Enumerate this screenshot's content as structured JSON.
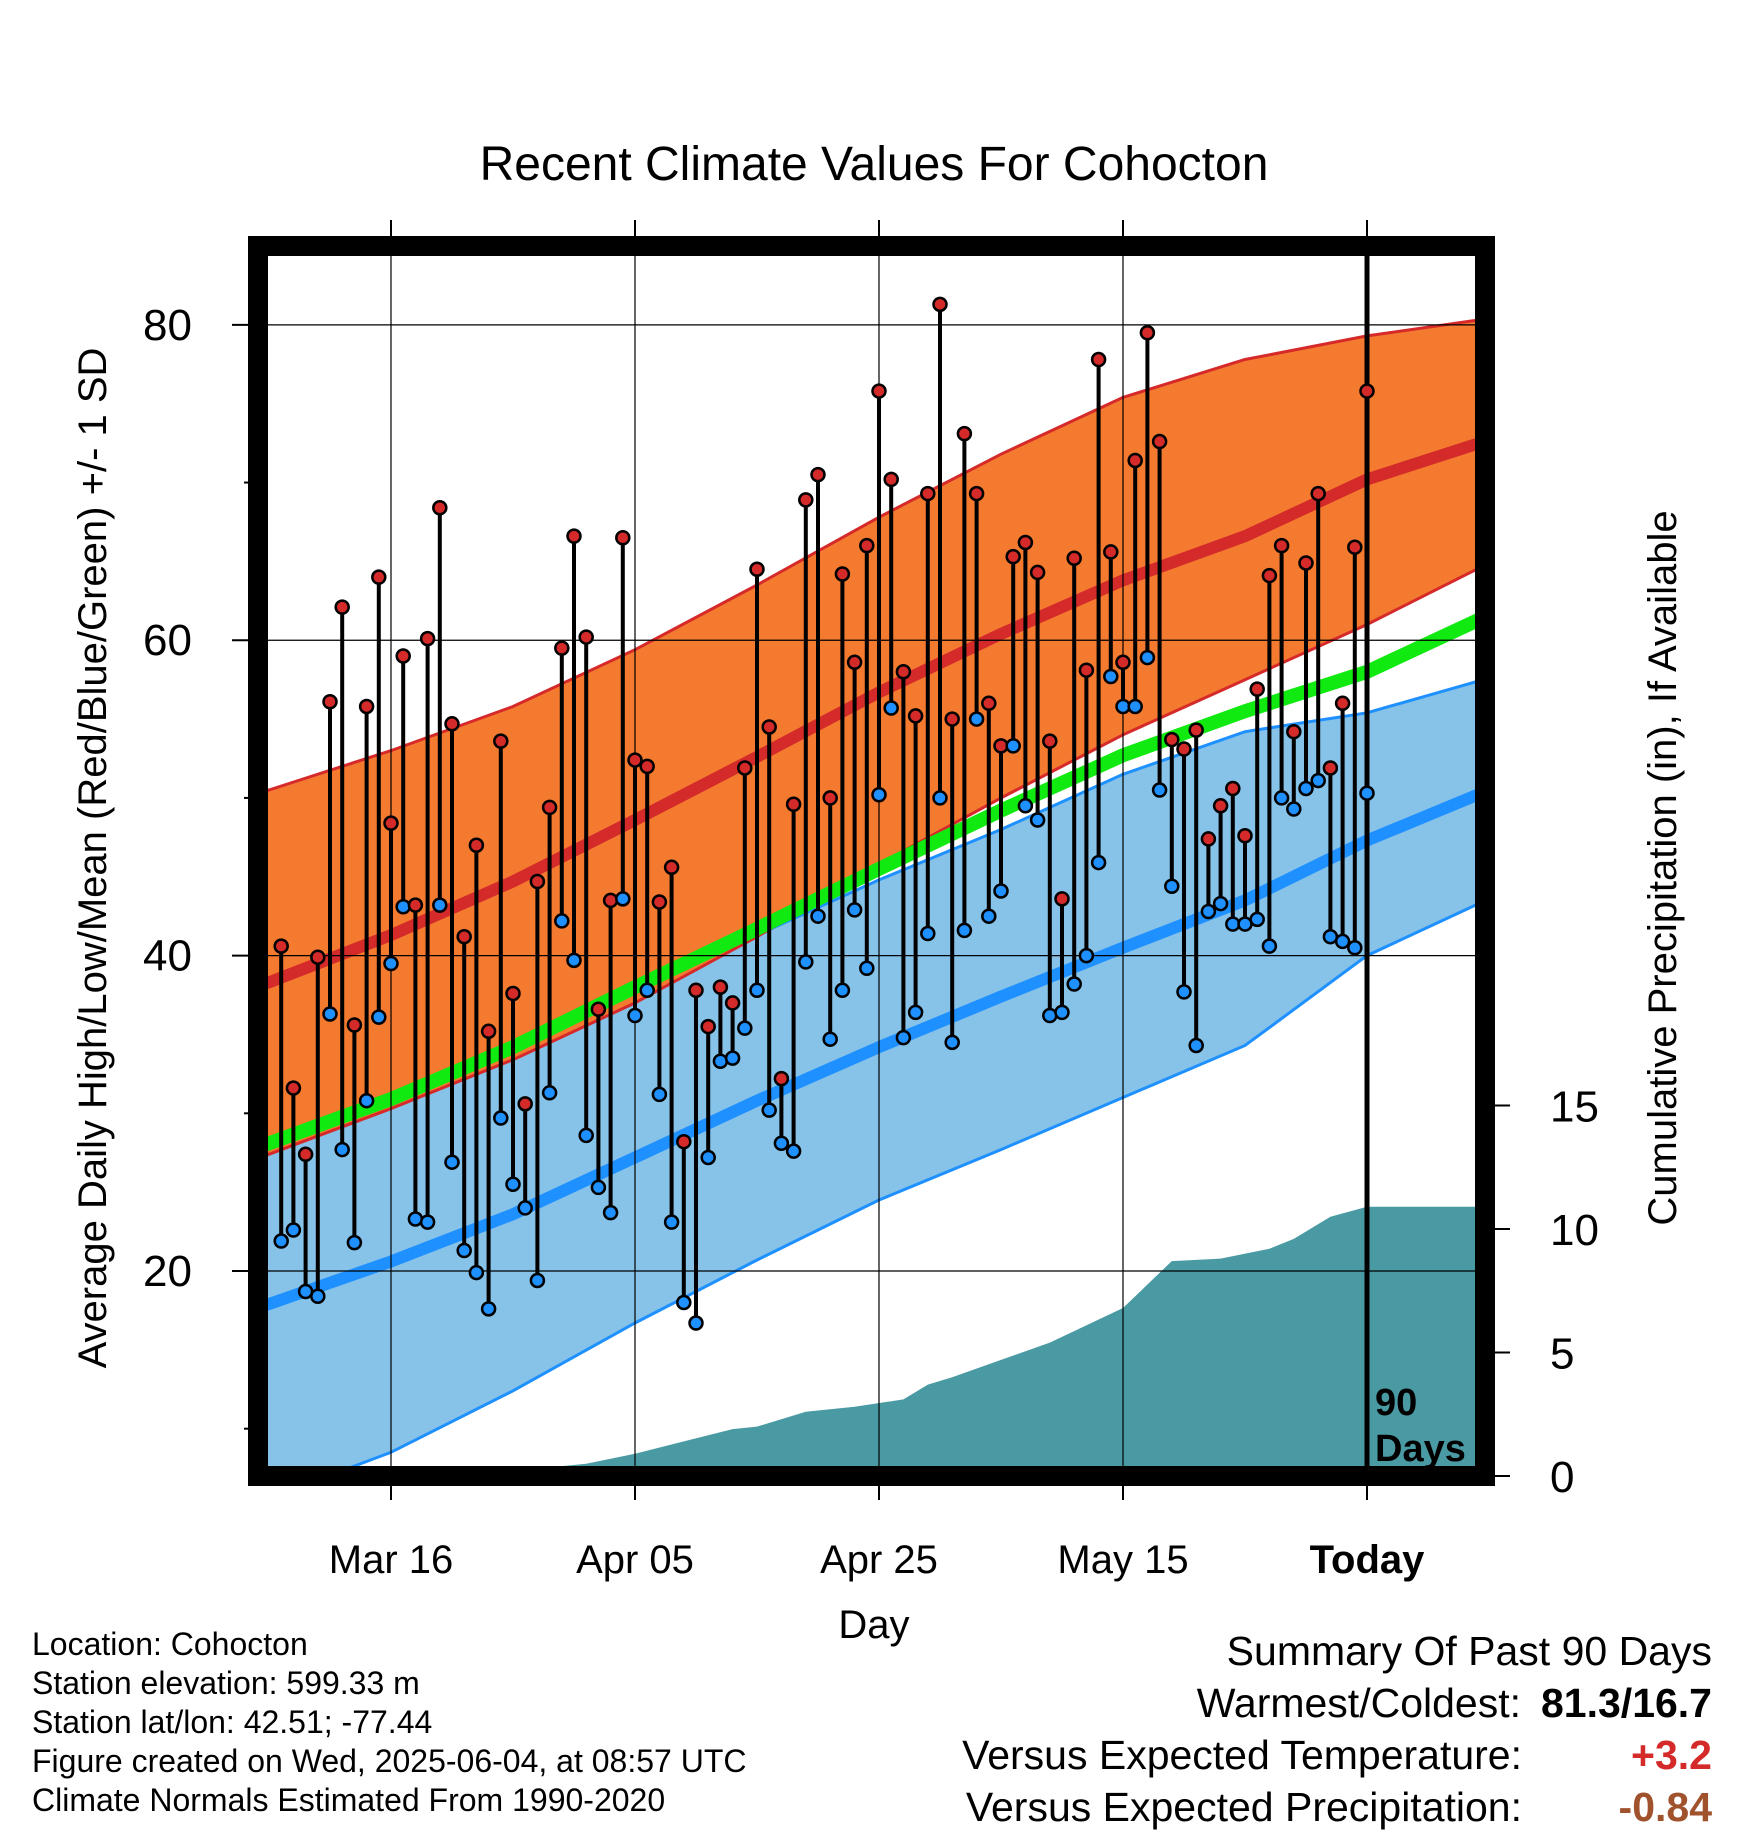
{
  "chart_data": {
    "type": "line",
    "title": "Recent Climate Values For Cohocton",
    "xlabel": "Day",
    "ylabel": "Average Daily High/Low/Mean (Red/Blue/Green) +/- 1 SD",
    "y2label": "Cumulative Precipitation (in), If Available",
    "x_ticks": [
      "Mar 16",
      "Apr 05",
      "Apr 25",
      "May 15",
      "Today"
    ],
    "y_ticks": [
      20,
      40,
      60,
      80
    ],
    "y2_ticks": [
      0,
      5,
      10,
      15
    ],
    "ylim": [
      7,
      85
    ],
    "y2lim": [
      0,
      30
    ],
    "x_range_days": [
      -100,
      0
    ],
    "period_label": "90 Days",
    "grid": true,
    "colors": {
      "high_band": "#f47a30",
      "high_band_edge": "#d62a2a",
      "high_mean": "#d42a2a",
      "low_band": "#87c3e8",
      "low_band_edge": "#1e90ff",
      "low_mean": "#1e90ff",
      "mean_line": "#10ea10",
      "precip": "#4a9aa4",
      "high_dot": "#d42a2a",
      "low_dot": "#1e90ff"
    },
    "normals": {
      "day": [
        -100,
        -90,
        -80,
        -70,
        -60,
        -50,
        -40,
        -30,
        -20,
        -10,
        0,
        10
      ],
      "high_mean": [
        35.7,
        38.3,
        41.3,
        44.7,
        48.6,
        52.6,
        56.7,
        60.4,
        63.8,
        66.6,
        70.2,
        72.7
      ],
      "high_upper": [
        48.3,
        50.5,
        53.0,
        55.8,
        59.4,
        63.5,
        67.8,
        71.8,
        75.4,
        77.8,
        79.3,
        80.4
      ],
      "high_lower": [
        24.8,
        27.4,
        30.3,
        33.4,
        37.0,
        41.2,
        45.8,
        50.0,
        54.0,
        57.5,
        61.0,
        64.9
      ],
      "low_mean": [
        15.6,
        17.9,
        20.6,
        23.6,
        27.2,
        30.8,
        34.2,
        37.4,
        40.5,
        43.5,
        47.3,
        50.5
      ],
      "low_upper": [
        27.8,
        29.5,
        32.0,
        34.6,
        37.6,
        41.3,
        44.8,
        48.0,
        51.5,
        54.2,
        55.4,
        57.6
      ],
      "low_lower": [
        3.8,
        5.6,
        8.5,
        12.4,
        16.7,
        20.7,
        24.5,
        27.7,
        31.0,
        34.3,
        40.0,
        43.6
      ],
      "mean_line": [
        25.8,
        28.1,
        30.9,
        34.2,
        38.0,
        41.7,
        45.5,
        49.2,
        52.7,
        55.5,
        58.0,
        61.6
      ]
    },
    "daily": {
      "day": [
        -89,
        -88,
        -87,
        -86,
        -85,
        -84,
        -83,
        -82,
        -81,
        -80,
        -79,
        -78,
        -77,
        -76,
        -75,
        -74,
        -73,
        -72,
        -71,
        -70,
        -69,
        -68,
        -67,
        -66,
        -65,
        -64,
        -63,
        -62,
        -61,
        -60,
        -59,
        -58,
        -57,
        -56,
        -55,
        -54,
        -53,
        -52,
        -51,
        -50,
        -49,
        -48,
        -47,
        -46,
        -45,
        -44,
        -43,
        -42,
        -41,
        -40,
        -39,
        -38,
        -37,
        -36,
        -35,
        -34,
        -33,
        -32,
        -31,
        -30,
        -29,
        -28,
        -27,
        -26,
        -25,
        -24,
        -23,
        -22,
        -21,
        -20,
        -19,
        -18,
        -17,
        -16,
        -15,
        -14,
        -13,
        -12,
        -11,
        -10,
        -9,
        -8,
        -7,
        -6,
        -5,
        -4,
        -3,
        -2,
        -1,
        0
      ],
      "high": [
        40.6,
        31.6,
        27.4,
        39.9,
        56.1,
        62.1,
        35.6,
        55.8,
        64.0,
        48.4,
        59.0,
        43.2,
        60.1,
        68.4,
        54.7,
        41.2,
        47.0,
        35.2,
        53.6,
        37.6,
        30.6,
        44.7,
        49.4,
        59.5,
        66.6,
        60.2,
        36.6,
        43.5,
        66.5,
        52.4,
        52.0,
        43.4,
        45.6,
        28.2,
        37.8,
        35.5,
        38.0,
        37.0,
        51.9,
        64.5,
        54.5,
        32.2,
        49.6,
        68.9,
        70.5,
        50.0,
        64.2,
        58.6,
        66.0,
        75.8,
        70.2,
        58.0,
        55.2,
        69.3,
        81.3,
        55.0,
        73.1,
        69.3,
        56.0,
        53.3,
        65.3,
        66.2,
        64.3,
        53.6,
        43.6,
        65.2,
        58.1,
        77.8,
        65.6,
        58.6,
        71.4,
        79.5,
        72.6,
        53.7,
        53.1,
        54.3,
        47.4,
        49.5,
        50.6,
        47.6,
        56.9,
        64.1,
        66.0,
        54.2,
        64.9,
        69.3,
        51.9,
        56.0,
        65.9,
        75.8
      ],
      "low": [
        21.9,
        22.6,
        18.7,
        18.4,
        36.3,
        27.7,
        21.8,
        30.8,
        36.1,
        39.5,
        43.1,
        23.3,
        23.1,
        43.2,
        26.9,
        21.3,
        19.9,
        17.6,
        29.7,
        25.5,
        24.0,
        19.4,
        31.3,
        42.2,
        39.7,
        28.6,
        25.3,
        23.7,
        43.6,
        36.2,
        37.8,
        31.2,
        23.1,
        18.0,
        16.7,
        27.2,
        33.3,
        33.5,
        35.4,
        37.8,
        30.2,
        28.1,
        27.6,
        39.6,
        42.5,
        34.7,
        37.8,
        42.9,
        39.2,
        50.2,
        55.7,
        34.8,
        36.4,
        41.4,
        50.0,
        34.5,
        41.6,
        55.0,
        42.5,
        44.1,
        53.3,
        49.5,
        48.6,
        36.2,
        36.4,
        38.2,
        40.0,
        45.9,
        57.7,
        55.8,
        55.8,
        58.9,
        50.5,
        44.4,
        37.7,
        34.3,
        42.8,
        43.3,
        42.0,
        42.0,
        42.3,
        40.6,
        50.0,
        49.3,
        50.6,
        51.1,
        41.2,
        40.9,
        40.5,
        50.3
      ]
    },
    "precip": {
      "day": [
        -80,
        -72,
        -64,
        -60,
        -56,
        -52,
        -50,
        -46,
        -42,
        -38,
        -36,
        -34,
        -30,
        -26,
        -20,
        -16,
        -12,
        -8,
        -6,
        -3,
        0,
        3,
        6,
        9
      ],
      "cumulative": [
        0.1,
        0.1,
        0.5,
        0.9,
        1.4,
        1.9,
        2.0,
        2.6,
        2.8,
        3.1,
        3.7,
        4.0,
        4.7,
        5.4,
        6.8,
        8.7,
        8.8,
        9.2,
        9.6,
        10.5,
        10.9,
        10.9,
        10.9,
        10.9
      ]
    }
  },
  "footer": {
    "location": "Location: Cohocton",
    "elevation": "Station elevation: 599.33 m",
    "latlon": "Station lat/lon: 42.51; -77.44",
    "created": "Figure created on Wed, 2025-06-04, at 08:57 UTC",
    "normals": "Climate Normals Estimated From 1990-2020"
  },
  "summary": {
    "heading": "Summary Of Past 90 Days",
    "warmest_label": "Warmest/Coldest:",
    "warmest_value": "81.3/16.7",
    "temp_label": "Versus Expected Temperature:",
    "temp_value": "+3.2",
    "temp_color": "#d42a2a",
    "precip_label": "Versus Expected Precipitation:",
    "precip_value": "-0.84",
    "precip_color": "#a0522d"
  }
}
